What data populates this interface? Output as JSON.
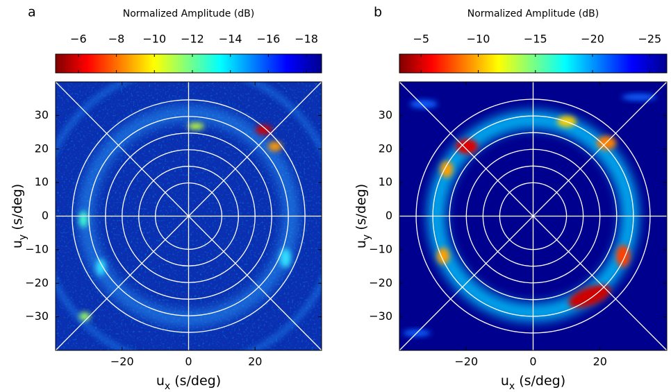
{
  "chart_data": [
    {
      "type": "heatmap",
      "panel_label": "a",
      "colorbar_title": "Normalized Amplitude (dB)",
      "clim": [
        -4.8,
        -18.8
      ],
      "cticks": [
        {
          "value": -6,
          "label": "−6"
        },
        {
          "value": -8,
          "label": "−8"
        },
        {
          "value": -10,
          "label": "−10"
        },
        {
          "value": -12,
          "label": "−12"
        },
        {
          "value": -14,
          "label": "−14"
        },
        {
          "value": -16,
          "label": "−16"
        },
        {
          "value": -18,
          "label": "−18"
        }
      ],
      "xlabel": [
        "u",
        "x",
        " (s/deg)"
      ],
      "ylabel": [
        "u",
        "y",
        " (s/deg)"
      ],
      "xlim": [
        -40,
        40
      ],
      "ylim": [
        -40,
        40
      ],
      "xticks": [
        {
          "value": -20,
          "label": "−20"
        },
        0,
        20
      ],
      "yticks": [
        {
          "value": -30,
          "label": "−30"
        },
        {
          "value": -20,
          "label": "−20"
        },
        {
          "value": -10,
          "label": "−10"
        },
        0,
        10,
        20,
        30
      ]
    },
    {
      "type": "heatmap",
      "panel_label": "b",
      "colorbar_title": "Normalized Amplitude (dB)",
      "clim": [
        -3.1,
        -26.5
      ],
      "cticks": [
        {
          "value": -5,
          "label": "−5"
        },
        {
          "value": -10,
          "label": "−10"
        },
        {
          "value": -15,
          "label": "−15"
        },
        {
          "value": -20,
          "label": "−20"
        },
        {
          "value": -25,
          "label": "−25"
        }
      ],
      "xlabel": [
        "u",
        "x",
        " (s/deg)"
      ],
      "ylabel": [
        "u",
        "y",
        " (s/deg)"
      ],
      "xlim": [
        -40,
        40
      ],
      "ylim": [
        -40,
        40
      ],
      "xticks": [
        {
          "value": -20,
          "label": "−20"
        },
        0,
        20
      ],
      "yticks": [
        {
          "value": -30,
          "label": "−30"
        },
        {
          "value": -20,
          "label": "−20"
        },
        {
          "value": -10,
          "label": "−10"
        },
        0,
        10,
        20,
        30
      ]
    }
  ]
}
